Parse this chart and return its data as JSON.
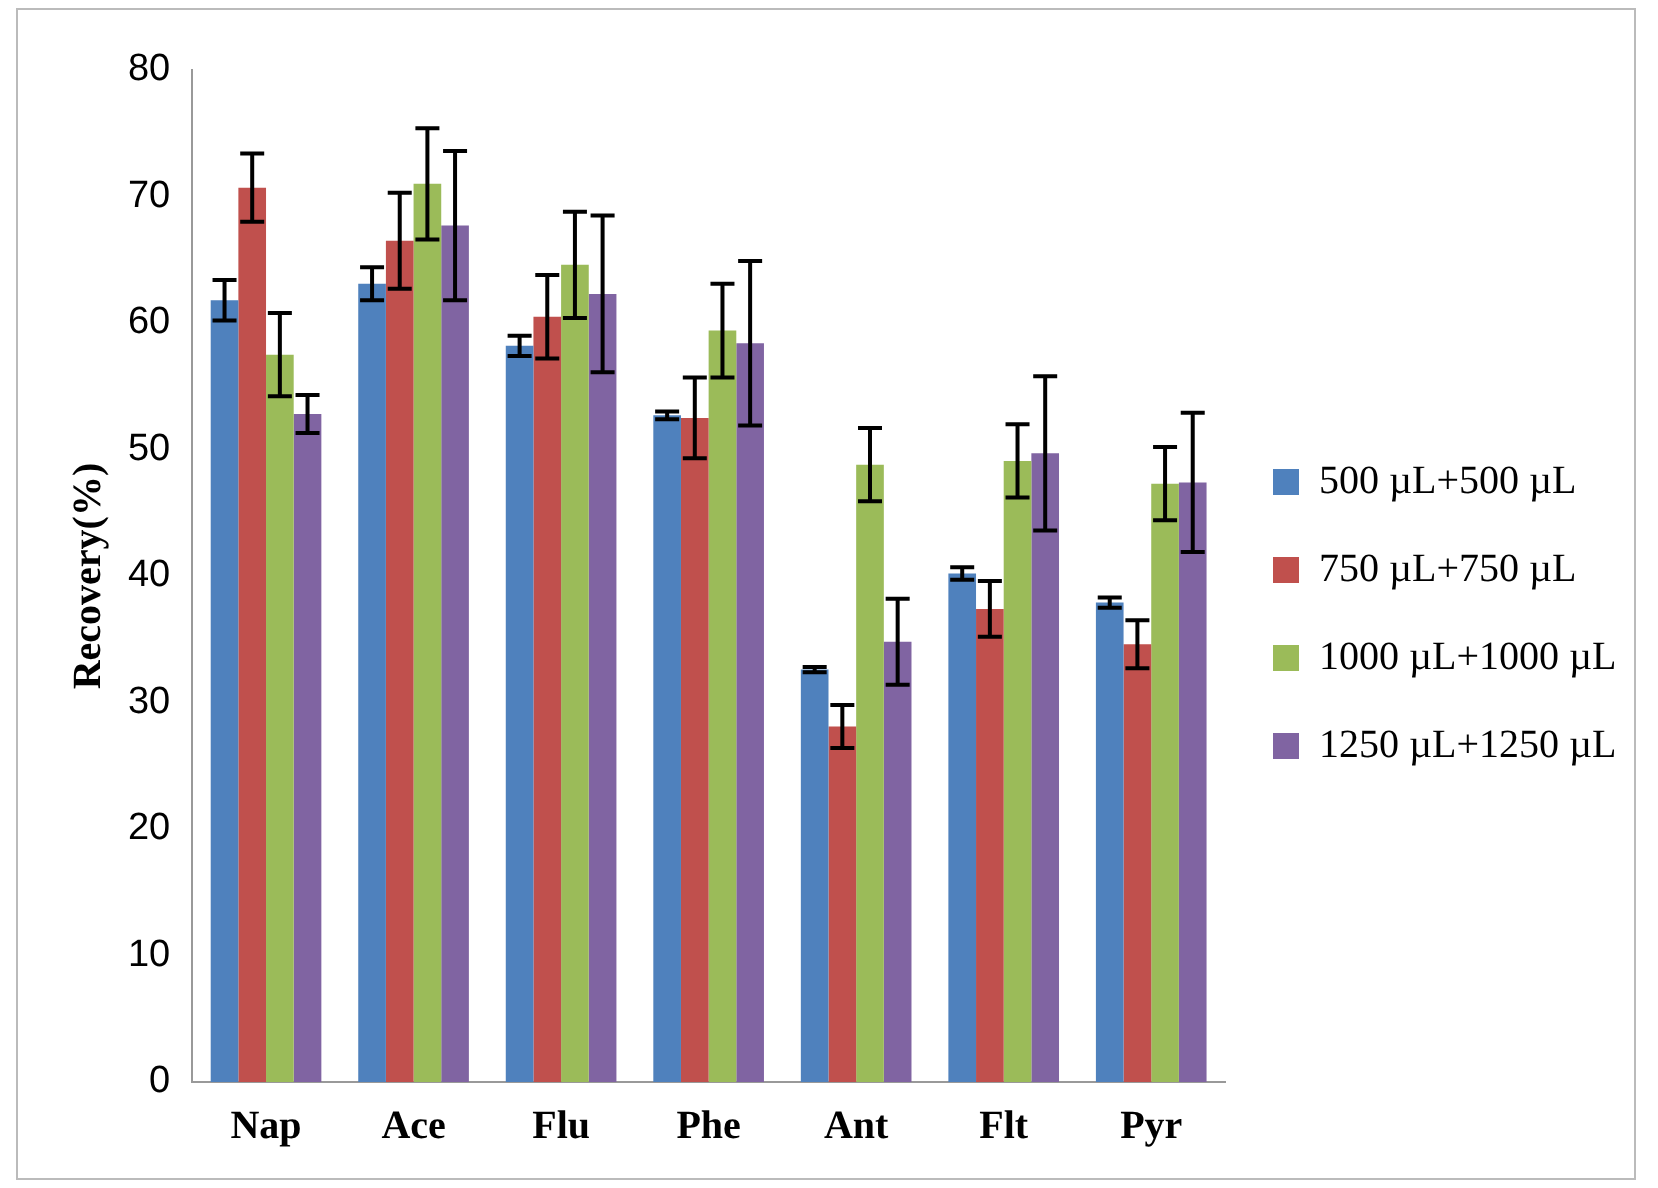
{
  "chart_data": {
    "type": "bar",
    "ylabel": "Recovery(%)",
    "categories": [
      "Nap",
      "Ace",
      "Flu",
      "Phe",
      "Ant",
      "Flt",
      "Pyr"
    ],
    "ylim": [
      0,
      80
    ],
    "yticks": [
      0,
      10,
      20,
      30,
      40,
      50,
      60,
      70,
      80
    ],
    "grid": false,
    "legend": "right",
    "series": [
      {
        "name": "500 µL+500 µL",
        "color": "#4f81bd",
        "values": [
          61.8,
          63.1,
          58.2,
          52.7,
          32.6,
          40.2,
          37.9
        ],
        "errors": [
          1.6,
          1.3,
          0.8,
          0.3,
          0.2,
          0.5,
          0.4
        ]
      },
      {
        "name": "750 µL+750 µL",
        "color": "#c0504d",
        "values": [
          70.7,
          66.5,
          60.5,
          52.5,
          28.1,
          37.4,
          34.6
        ],
        "errors": [
          2.7,
          3.8,
          3.3,
          3.2,
          1.7,
          2.2,
          1.9
        ]
      },
      {
        "name": "1000 µL+1000 µL",
        "color": "#9bbb59",
        "values": [
          57.5,
          71,
          64.6,
          59.4,
          48.8,
          49.1,
          47.3
        ],
        "errors": [
          3.3,
          4.4,
          4.2,
          3.7,
          2.9,
          2.9,
          2.9
        ]
      },
      {
        "name": "1250 µL+1250 µL",
        "color": "#8064a2",
        "values": [
          52.8,
          67.7,
          62.3,
          58.4,
          34.8,
          49.7,
          47.4
        ],
        "errors": [
          1.5,
          5.9,
          6.2,
          6.5,
          3.4,
          6.1,
          5.5
        ]
      }
    ]
  }
}
